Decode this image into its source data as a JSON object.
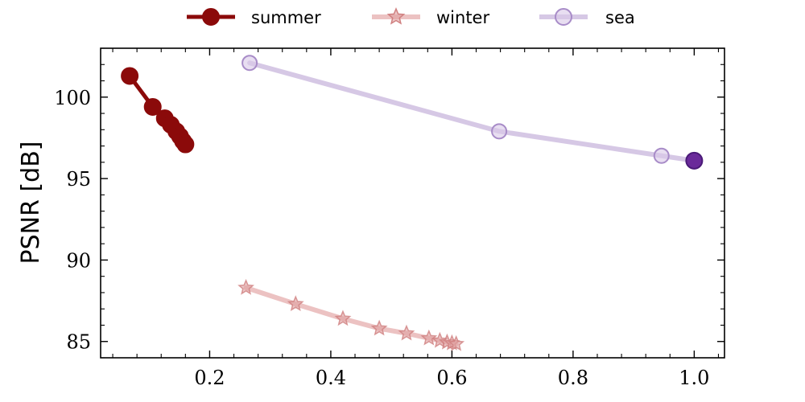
{
  "chart_data": {
    "type": "line",
    "title": "",
    "xlabel": "",
    "ylabel": "PSNR [dB]",
    "xlim": [
      0.02,
      1.05
    ],
    "ylim": [
      84.0,
      103.0
    ],
    "xticks": [
      0.2,
      0.4,
      0.6,
      0.8,
      1.0
    ],
    "xtick_labels": [
      "0.2",
      "0.4",
      "0.6",
      "0.8",
      "1.0"
    ],
    "yticks": [
      85,
      90,
      95,
      100
    ],
    "ytick_labels": [
      "85",
      "90",
      "95",
      "100"
    ],
    "grid": false,
    "legend_position": "top-center",
    "series": [
      {
        "name": "summer",
        "color": "#8b0a0a",
        "marker": "circle",
        "x": [
          0.068,
          0.106,
          0.126,
          0.136,
          0.145,
          0.151,
          0.156,
          0.16
        ],
        "y": [
          101.3,
          99.4,
          98.7,
          98.3,
          97.9,
          97.6,
          97.3,
          97.1
        ]
      },
      {
        "name": "winter",
        "color": "#d98686",
        "marker": "star",
        "x": [
          0.26,
          0.342,
          0.42,
          0.48,
          0.525,
          0.562,
          0.58,
          0.592,
          0.6,
          0.607
        ],
        "y": [
          88.3,
          87.3,
          86.4,
          85.8,
          85.5,
          85.2,
          85.05,
          84.95,
          84.9,
          84.85
        ]
      },
      {
        "name": "sea",
        "color": "#b59ad0",
        "marker": "circle",
        "x": [
          0.266,
          0.678,
          0.946,
          1.0
        ],
        "y": [
          102.1,
          97.9,
          96.4,
          96.1
        ]
      }
    ]
  }
}
